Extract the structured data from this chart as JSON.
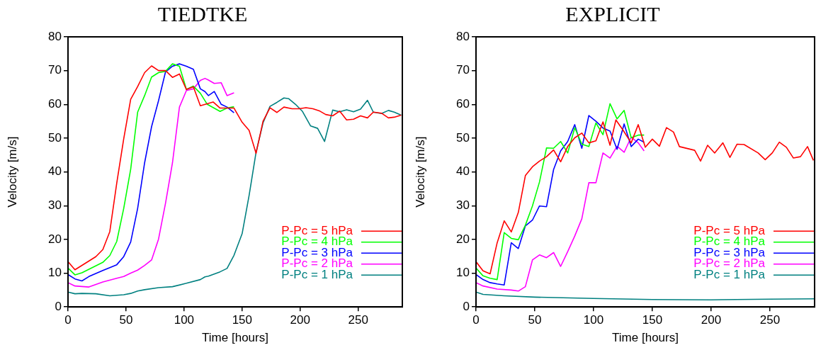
{
  "chart_data": [
    {
      "type": "line",
      "title": "TIEDTKE",
      "xlabel": "Time [hours]",
      "ylabel": "Velocity [m/s]",
      "xlim": [
        0,
        288
      ],
      "ylim": [
        0,
        80
      ],
      "xticks": [
        0,
        50,
        100,
        150,
        200,
        250
      ],
      "yticks": [
        0,
        10,
        20,
        30,
        40,
        50,
        60,
        70,
        80
      ],
      "grid": false,
      "legend": "bottom right",
      "marker": "none",
      "line_style": "solid",
      "series": [
        {
          "name": "P-Pc = 5 hPa",
          "color": "#ff0000",
          "x": [
            0,
            6,
            24,
            30,
            36,
            42,
            48,
            54,
            60,
            66,
            72,
            78,
            84,
            90,
            96,
            102,
            108,
            114,
            125,
            131,
            143,
            150,
            156,
            162,
            168,
            174,
            180,
            186,
            193,
            199,
            205,
            211,
            217,
            222,
            228,
            234,
            240,
            246,
            252,
            258,
            263,
            270,
            276,
            281,
            287
          ],
          "values": [
            13.4,
            11,
            14.9,
            17,
            22.3,
            36.7,
            49.8,
            61.5,
            65.3,
            69.4,
            71.4,
            70,
            70,
            68,
            69,
            64.4,
            65.2,
            59.6,
            60.7,
            58.9,
            58.9,
            54.7,
            52.3,
            45.5,
            55,
            59,
            57.6,
            59.2,
            58.7,
            58.7,
            59,
            58.7,
            58,
            57,
            56.6,
            58,
            55.4,
            55.6,
            56.6,
            56,
            57.7,
            57.4,
            56,
            56.2,
            56.8
          ]
        },
        {
          "name": "P-Pc = 4 hPa",
          "color": "#00ff00",
          "x": [
            0,
            6,
            12,
            30,
            36,
            42,
            48,
            54,
            60,
            66,
            72,
            78,
            84,
            90,
            96,
            102,
            108,
            114,
            120,
            131,
            137,
            143
          ],
          "values": [
            11.5,
            9.5,
            10.1,
            13.2,
            15.2,
            19.4,
            29.2,
            40.8,
            57.7,
            62.6,
            68.1,
            69.4,
            69.8,
            72,
            71.3,
            64.4,
            65.4,
            63.3,
            60,
            57.9,
            58.9,
            59.3
          ]
        },
        {
          "name": "P-Pc = 3 hPa",
          "color": "#0000ff",
          "x": [
            0,
            6,
            12,
            18,
            30,
            42,
            48,
            54,
            60,
            66,
            72,
            78,
            84,
            90,
            96,
            102,
            108,
            114,
            118,
            121,
            126,
            132,
            137,
            143
          ],
          "values": [
            9.6,
            8.3,
            7.7,
            9,
            10.8,
            12.5,
            14.9,
            19.2,
            29.2,
            42.7,
            53.4,
            61.1,
            69.6,
            71.3,
            72,
            71.3,
            70.4,
            64.6,
            63.8,
            62.6,
            63.8,
            60,
            59.2,
            57.5
          ]
        },
        {
          "name": "P-Pc = 2 hPa",
          "color": "#ff00ff",
          "x": [
            0,
            6,
            18,
            30,
            42,
            48,
            54,
            60,
            66,
            72,
            78,
            84,
            90,
            96,
            102,
            108,
            114,
            118,
            121,
            126,
            132,
            137,
            143
          ],
          "values": [
            7.2,
            6.2,
            5.9,
            7.4,
            8.5,
            9,
            10,
            10.9,
            12.3,
            13.9,
            20.1,
            30.7,
            42.7,
            59.2,
            64.1,
            64.6,
            67.1,
            67.7,
            67.2,
            66.2,
            66.4,
            62.6,
            63.4
          ]
        },
        {
          "name": "P-Pc = 1 hPa",
          "color": "#008080",
          "x": [
            0,
            6,
            12,
            24,
            36,
            48,
            54,
            60,
            66,
            78,
            90,
            102,
            114,
            118,
            121,
            131,
            137,
            143,
            150,
            156,
            162,
            168,
            174,
            180,
            186,
            190,
            196,
            202,
            209,
            215,
            221,
            228,
            234,
            240,
            246,
            252,
            258,
            263,
            270,
            276,
            281,
            287
          ],
          "values": [
            4.4,
            3.9,
            4,
            3.9,
            3.3,
            3.6,
            4,
            4.7,
            5.1,
            5.7,
            6,
            7,
            8.1,
            8.9,
            9.1,
            10.4,
            11.4,
            15.3,
            21.7,
            33,
            45.8,
            54.5,
            59.4,
            60.6,
            61.9,
            61.7,
            60,
            57.9,
            53.6,
            52.9,
            49,
            58.3,
            57.8,
            58.4,
            57.8,
            58.6,
            61.2,
            57.7,
            57.3,
            58.2,
            57.7,
            56.8
          ]
        }
      ]
    },
    {
      "type": "line",
      "title": "EXPLICIT",
      "xlabel": "Time [hours]",
      "ylabel": "Velocity [m/s]",
      "xlim": [
        0,
        288
      ],
      "ylim": [
        0,
        80
      ],
      "xticks": [
        0,
        50,
        100,
        150,
        200,
        250
      ],
      "yticks": [
        0,
        10,
        20,
        30,
        40,
        50,
        60,
        70,
        80
      ],
      "grid": false,
      "legend": "bottom right",
      "marker": "none",
      "line_style": "solid",
      "series": [
        {
          "name": "P-Pc = 5 hPa",
          "color": "#ff0000",
          "x": [
            0,
            6,
            12,
            18,
            24,
            30,
            36,
            42,
            48,
            54,
            60,
            66,
            72,
            78,
            84,
            90,
            96,
            102,
            108,
            114,
            119,
            125,
            132,
            138,
            144,
            150,
            156,
            162,
            168,
            173,
            186,
            191,
            197,
            203,
            210,
            216,
            222,
            228,
            240,
            246,
            252,
            258,
            264,
            270,
            276,
            282,
            287
          ],
          "values": [
            13.4,
            10.7,
            9.8,
            19,
            25.5,
            22.2,
            28,
            38.9,
            41.5,
            43.2,
            44.5,
            46.5,
            43,
            47.5,
            50.1,
            51.5,
            48.6,
            49.2,
            54.8,
            47.9,
            55.4,
            52.4,
            48.6,
            54,
            47.3,
            49.7,
            47.6,
            53.1,
            51.8,
            47.5,
            46.4,
            43.2,
            47.9,
            45.6,
            48.6,
            44.3,
            48.2,
            48.1,
            45.6,
            43.6,
            45.6,
            48.8,
            47.3,
            44.1,
            44.5,
            47.5,
            43.4
          ]
        },
        {
          "name": "P-Pc = 4 hPa",
          "color": "#00ff00",
          "x": [
            0,
            6,
            12,
            18,
            24,
            30,
            36,
            42,
            48,
            54,
            60,
            66,
            72,
            78,
            84,
            90,
            96,
            102,
            108,
            114,
            120,
            126,
            132,
            138,
            143
          ],
          "values": [
            11.5,
            9.2,
            8.5,
            8.1,
            22,
            20.3,
            19.9,
            24.2,
            29.9,
            37,
            47.1,
            47,
            49,
            45.6,
            53.1,
            48.2,
            47.5,
            54.5,
            51,
            60.2,
            55.7,
            58.2,
            50.1,
            50.9,
            50.9
          ]
        },
        {
          "name": "P-Pc = 3 hPa",
          "color": "#0000ff",
          "x": [
            0,
            6,
            12,
            18,
            24,
            30,
            36,
            42,
            48,
            54,
            60,
            66,
            72,
            78,
            84,
            90,
            96,
            102,
            108,
            114,
            120,
            126,
            132,
            138,
            143
          ],
          "values": [
            9.6,
            8.1,
            7.2,
            6.8,
            6.5,
            19,
            17.3,
            24,
            25.7,
            29.9,
            29.7,
            40.7,
            46.2,
            49,
            54,
            47,
            56.7,
            55,
            53,
            52.1,
            46.7,
            54.2,
            47.5,
            49.7,
            48.8
          ]
        },
        {
          "name": "P-Pc = 2 hPa",
          "color": "#ff00ff",
          "x": [
            0,
            6,
            18,
            30,
            36,
            42,
            48,
            54,
            60,
            66,
            72,
            78,
            84,
            90,
            96,
            102,
            108,
            114,
            120,
            126,
            132,
            138,
            143
          ],
          "values": [
            7.2,
            6.2,
            5.3,
            5,
            4.7,
            6,
            13.9,
            15.4,
            14.6,
            16.1,
            12,
            16.4,
            21,
            26.1,
            36.8,
            36.8,
            45.6,
            44.1,
            47.6,
            45.8,
            50.3,
            48.6,
            46.2
          ]
        },
        {
          "name": "P-Pc = 1 hPa",
          "color": "#008080",
          "x": [
            0,
            6,
            24,
            50,
            100,
            150,
            200,
            250,
            288
          ],
          "values": [
            4.4,
            3.7,
            3.3,
            2.9,
            2.5,
            2.2,
            2.1,
            2.3,
            2.4
          ]
        }
      ]
    }
  ]
}
